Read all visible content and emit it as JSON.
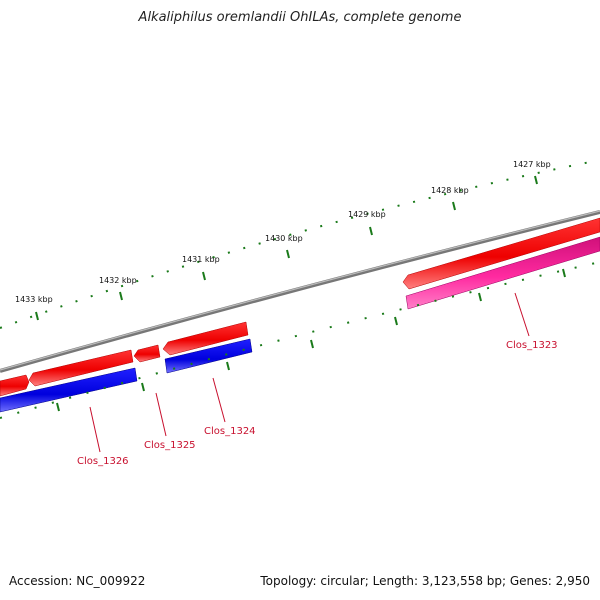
{
  "header": {
    "title": "Alkaliphilus oremlandii OhILAs, complete genome"
  },
  "footer": {
    "accession": "Accession: NC_009922",
    "stats": "Topology: circular; Length: 3,123,558 bp; Genes: 2,950"
  },
  "ruler": {
    "labels": [
      "1427 kbp",
      "1428 kbp",
      "1429 kbp",
      "1430 kbp",
      "1431 kbp",
      "1432 kbp",
      "1433 kbp"
    ]
  },
  "genes": {
    "clos_1323": "Clos_1323",
    "clos_1324": "Clos_1324",
    "clos_1325": "Clos_1325",
    "clos_1326": "Clos_1326"
  },
  "colors": {
    "forward_cds": "#ee0000",
    "reverse_cds": "#1010dd",
    "reverse_cds_alt": "#e0158c",
    "backbone": "#888888",
    "ticks": "#1a7a1a",
    "label": "#c8102e"
  }
}
